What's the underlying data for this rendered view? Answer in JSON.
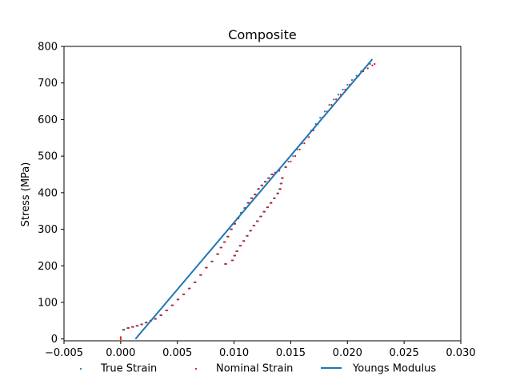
{
  "chart_data": {
    "type": "scatter",
    "title": "Composite",
    "xlabel": "",
    "ylabel": "Stress (MPa)",
    "xlim": [
      -0.005,
      0.03
    ],
    "ylim": [
      -5,
      800
    ],
    "x_ticks": [
      "-0.005",
      "0.000",
      "0.005",
      "0.010",
      "0.015",
      "0.020",
      "0.025",
      "0.030"
    ],
    "y_ticks": [
      "0",
      "100",
      "200",
      "300",
      "400",
      "500",
      "600",
      "700",
      "800"
    ],
    "grid": false,
    "legend_position": "bottom",
    "series": [
      {
        "name": "True Strain",
        "kind": "scatter",
        "color": "#1f77b4",
        "points": [
          [
            0.0,
            0
          ],
          [
            0.0,
            5
          ],
          [
            0.0002,
            25
          ],
          [
            0.0006,
            30
          ],
          [
            0.001,
            33
          ],
          [
            0.0014,
            36
          ],
          [
            0.0018,
            40
          ],
          [
            0.0022,
            45
          ],
          [
            0.0026,
            50
          ],
          [
            0.003,
            55
          ],
          [
            0.0035,
            65
          ],
          [
            0.004,
            78
          ],
          [
            0.0045,
            92
          ],
          [
            0.005,
            108
          ],
          [
            0.0055,
            122
          ],
          [
            0.006,
            138
          ],
          [
            0.0065,
            155
          ],
          [
            0.007,
            175
          ],
          [
            0.0075,
            195
          ],
          [
            0.008,
            212
          ],
          [
            0.0085,
            232
          ],
          [
            0.0088,
            250
          ],
          [
            0.0091,
            265
          ],
          [
            0.0094,
            280
          ],
          [
            0.0097,
            300
          ],
          [
            0.01,
            315
          ],
          [
            0.0103,
            330
          ],
          [
            0.0106,
            345
          ],
          [
            0.0109,
            358
          ],
          [
            0.0112,
            372
          ],
          [
            0.0115,
            385
          ],
          [
            0.0118,
            395
          ],
          [
            0.0121,
            410
          ],
          [
            0.0124,
            420
          ],
          [
            0.0127,
            430
          ],
          [
            0.013,
            440
          ],
          [
            0.0133,
            450
          ],
          [
            0.0136,
            455
          ],
          [
            0.0139,
            460
          ],
          [
            0.0092,
            205
          ],
          [
            0.0098,
            215
          ],
          [
            0.01,
            228
          ],
          [
            0.0102,
            240
          ],
          [
            0.0105,
            255
          ],
          [
            0.0108,
            268
          ],
          [
            0.0111,
            282
          ],
          [
            0.0114,
            296
          ],
          [
            0.0117,
            310
          ],
          [
            0.012,
            322
          ],
          [
            0.0123,
            335
          ],
          [
            0.0126,
            348
          ],
          [
            0.0129,
            360
          ],
          [
            0.0132,
            372
          ],
          [
            0.0135,
            385
          ],
          [
            0.0138,
            398
          ],
          [
            0.014,
            410
          ],
          [
            0.0141,
            425
          ],
          [
            0.0142,
            440
          ],
          [
            0.0145,
            470
          ],
          [
            0.0148,
            485
          ],
          [
            0.0152,
            500
          ],
          [
            0.0156,
            518
          ],
          [
            0.016,
            535
          ],
          [
            0.0164,
            552
          ],
          [
            0.0168,
            570
          ],
          [
            0.0172,
            588
          ],
          [
            0.0176,
            605
          ],
          [
            0.018,
            622
          ],
          [
            0.0184,
            640
          ],
          [
            0.0188,
            655
          ],
          [
            0.0192,
            668
          ],
          [
            0.0196,
            682
          ],
          [
            0.02,
            695
          ],
          [
            0.0204,
            708
          ],
          [
            0.0208,
            720
          ],
          [
            0.0212,
            732
          ],
          [
            0.0216,
            742
          ],
          [
            0.022,
            752
          ]
        ]
      },
      {
        "name": "Nominal Strain",
        "kind": "scatter",
        "color": "#ff0000",
        "points": [
          [
            0.0,
            0
          ],
          [
            0.0,
            5
          ],
          [
            0.0003,
            25
          ],
          [
            0.0007,
            30
          ],
          [
            0.0011,
            33
          ],
          [
            0.0015,
            36
          ],
          [
            0.0019,
            40
          ],
          [
            0.0023,
            45
          ],
          [
            0.0027,
            50
          ],
          [
            0.0031,
            55
          ],
          [
            0.0036,
            65
          ],
          [
            0.0041,
            78
          ],
          [
            0.0046,
            92
          ],
          [
            0.0051,
            108
          ],
          [
            0.0056,
            122
          ],
          [
            0.0061,
            138
          ],
          [
            0.0066,
            155
          ],
          [
            0.0071,
            175
          ],
          [
            0.0076,
            195
          ],
          [
            0.0081,
            212
          ],
          [
            0.0086,
            232
          ],
          [
            0.0089,
            250
          ],
          [
            0.0092,
            265
          ],
          [
            0.0095,
            280
          ],
          [
            0.0098,
            300
          ],
          [
            0.0101,
            315
          ],
          [
            0.0104,
            330
          ],
          [
            0.0107,
            345
          ],
          [
            0.011,
            358
          ],
          [
            0.0113,
            372
          ],
          [
            0.0116,
            385
          ],
          [
            0.0119,
            395
          ],
          [
            0.0122,
            410
          ],
          [
            0.0125,
            420
          ],
          [
            0.0128,
            430
          ],
          [
            0.0131,
            440
          ],
          [
            0.0134,
            450
          ],
          [
            0.0137,
            455
          ],
          [
            0.014,
            460
          ],
          [
            0.0093,
            205
          ],
          [
            0.0099,
            215
          ],
          [
            0.0101,
            228
          ],
          [
            0.0103,
            240
          ],
          [
            0.0106,
            255
          ],
          [
            0.0109,
            268
          ],
          [
            0.0112,
            282
          ],
          [
            0.0115,
            296
          ],
          [
            0.0118,
            310
          ],
          [
            0.0121,
            322
          ],
          [
            0.0124,
            335
          ],
          [
            0.0127,
            348
          ],
          [
            0.013,
            360
          ],
          [
            0.0133,
            372
          ],
          [
            0.0136,
            385
          ],
          [
            0.0139,
            398
          ],
          [
            0.0141,
            410
          ],
          [
            0.0142,
            425
          ],
          [
            0.0143,
            440
          ],
          [
            0.0146,
            470
          ],
          [
            0.015,
            485
          ],
          [
            0.0154,
            500
          ],
          [
            0.0158,
            518
          ],
          [
            0.0162,
            535
          ],
          [
            0.0166,
            552
          ],
          [
            0.017,
            570
          ],
          [
            0.0174,
            588
          ],
          [
            0.0178,
            605
          ],
          [
            0.0182,
            622
          ],
          [
            0.0186,
            640
          ],
          [
            0.019,
            655
          ],
          [
            0.0194,
            668
          ],
          [
            0.0198,
            682
          ],
          [
            0.0202,
            695
          ],
          [
            0.0206,
            708
          ],
          [
            0.021,
            720
          ],
          [
            0.0214,
            732
          ],
          [
            0.0218,
            740
          ],
          [
            0.0222,
            748
          ],
          [
            0.0224,
            752
          ]
        ]
      },
      {
        "name": "Youngs Modulus",
        "kind": "line",
        "color": "#1f77b4",
        "points": [
          [
            0.0013,
            0
          ],
          [
            0.0222,
            765
          ]
        ]
      }
    ]
  }
}
